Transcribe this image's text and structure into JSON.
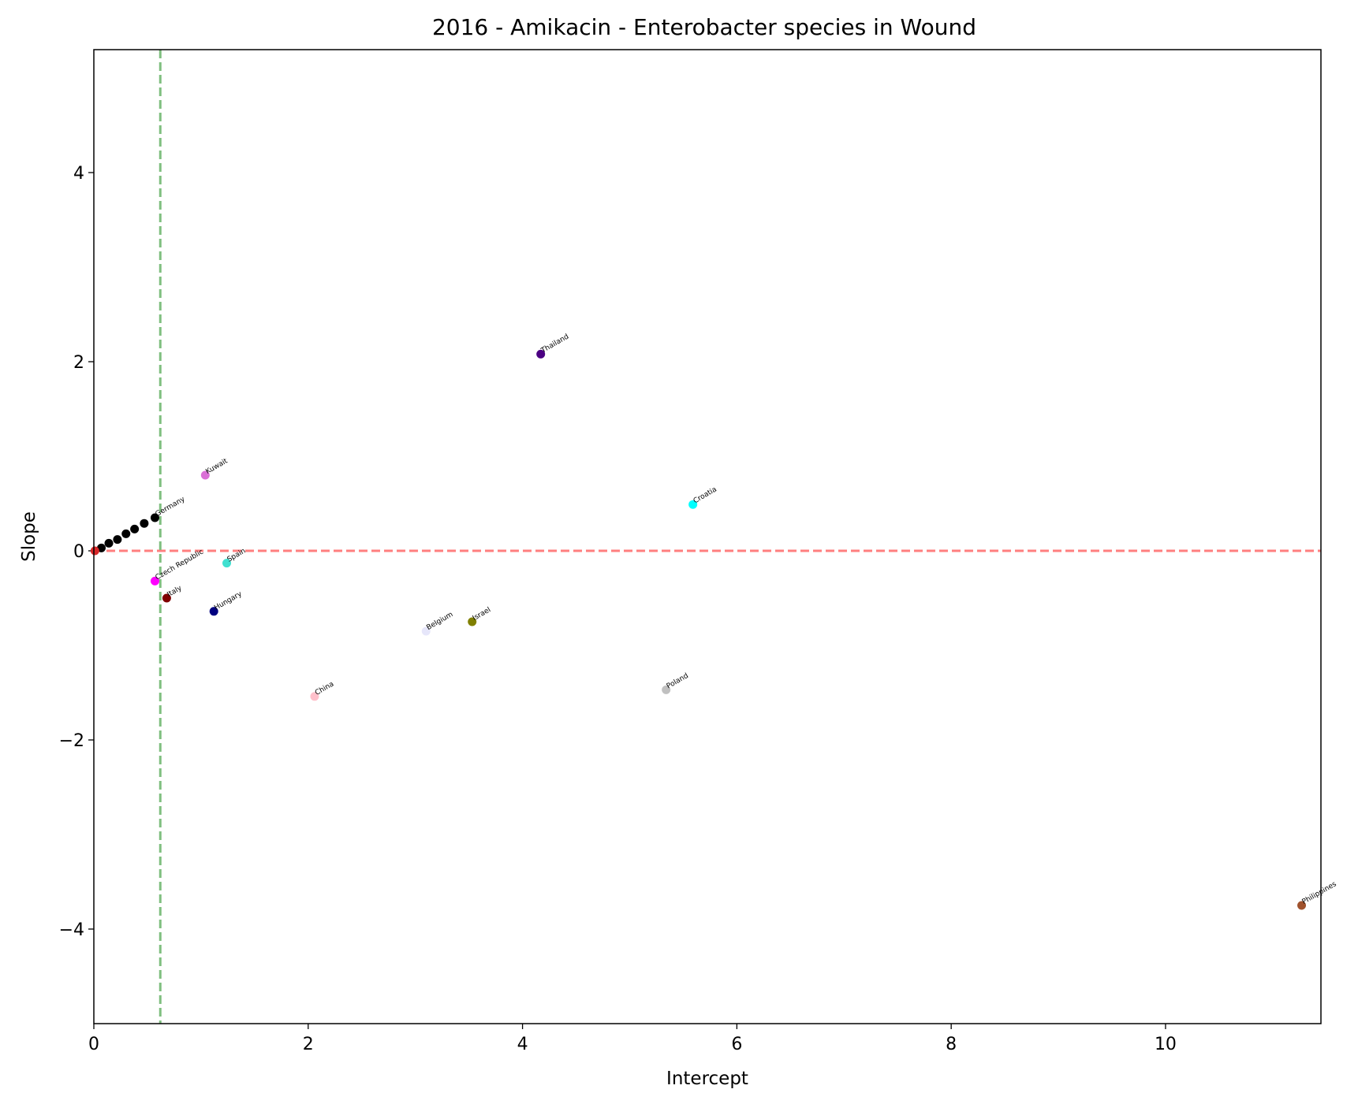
{
  "chart_data": {
    "type": "scatter",
    "title": "2016 - Amikacin - Enterobacter species in Wound",
    "xlabel": "Intercept",
    "ylabel": "Slope",
    "xlim": [
      0,
      11.45
    ],
    "ylim": [
      -5.0,
      5.3
    ],
    "xticks": [
      0,
      2,
      4,
      6,
      8,
      10
    ],
    "yticks": [
      -4,
      -2,
      0,
      2,
      4
    ],
    "grid": false,
    "reference_lines": [
      {
        "orientation": "horizontal",
        "value": 0,
        "color": "#ff7f7f",
        "style": "dashed"
      },
      {
        "orientation": "vertical",
        "value": 0.62,
        "color": "#7fbf7f",
        "style": "dashed"
      }
    ],
    "points": [
      {
        "label": "Thailand",
        "x": 4.17,
        "y": 2.08,
        "color": "#4b0082"
      },
      {
        "label": "Kuwait",
        "x": 1.04,
        "y": 0.8,
        "color": "#da70d6"
      },
      {
        "label": "Croatia",
        "x": 5.59,
        "y": 0.49,
        "color": "#00ffff"
      },
      {
        "label": "Germany",
        "x": 0.57,
        "y": 0.35,
        "color": "#000000"
      },
      {
        "label": "",
        "x": 0.47,
        "y": 0.29,
        "color": "#000000"
      },
      {
        "label": "",
        "x": 0.38,
        "y": 0.23,
        "color": "#000000"
      },
      {
        "label": "",
        "x": 0.3,
        "y": 0.18,
        "color": "#000000"
      },
      {
        "label": "",
        "x": 0.22,
        "y": 0.12,
        "color": "#000000"
      },
      {
        "label": "",
        "x": 0.14,
        "y": 0.08,
        "color": "#000000"
      },
      {
        "label": "",
        "x": 0.07,
        "y": 0.03,
        "color": "#000000"
      },
      {
        "label": "",
        "x": 0.01,
        "y": 0.0,
        "color": "#d62728"
      },
      {
        "label": "Spain",
        "x": 1.24,
        "y": -0.13,
        "color": "#40e0d0"
      },
      {
        "label": "Czech Republic",
        "x": 0.57,
        "y": -0.32,
        "color": "#ff00ff"
      },
      {
        "label": "Italy",
        "x": 0.68,
        "y": -0.5,
        "color": "#800000"
      },
      {
        "label": "Hungary",
        "x": 1.12,
        "y": -0.64,
        "color": "#000080"
      },
      {
        "label": "Belgium",
        "x": 3.1,
        "y": -0.85,
        "color": "#e6e6fa"
      },
      {
        "label": "Israel",
        "x": 3.53,
        "y": -0.75,
        "color": "#808000"
      },
      {
        "label": "China",
        "x": 2.06,
        "y": -1.54,
        "color": "#ffc0cb"
      },
      {
        "label": "Poland",
        "x": 5.34,
        "y": -1.47,
        "color": "#c0c0c0"
      },
      {
        "label": "Philippines",
        "x": 11.27,
        "y": -3.75,
        "color": "#a0522d"
      }
    ]
  }
}
